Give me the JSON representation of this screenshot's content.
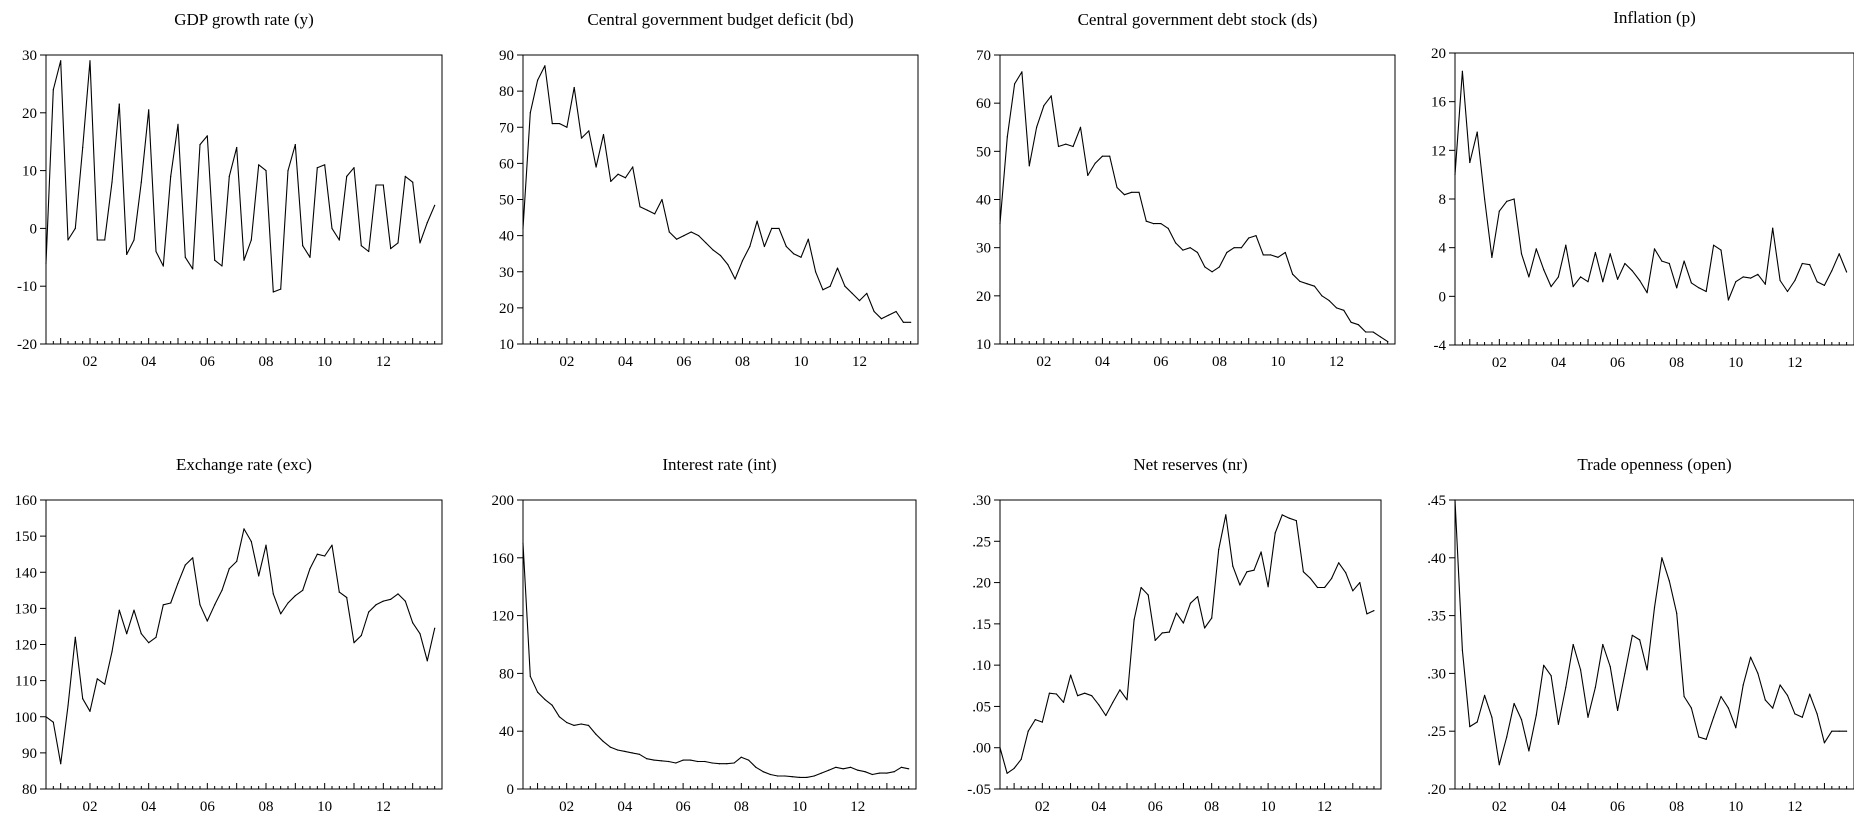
{
  "chart_data": [
    {
      "type": "line",
      "title": "GDP growth rate (y)",
      "xlabel": "",
      "ylabel": "",
      "x_ticks": [
        "02",
        "04",
        "06",
        "08",
        "10",
        "12"
      ],
      "y_ticks": [
        -20,
        -10,
        0,
        10,
        20,
        30
      ],
      "ylim": [
        -20,
        30
      ],
      "x_start": 2000.5,
      "x_step": 0.25,
      "y_format": "int",
      "values": [
        -6,
        24,
        29,
        -2,
        0,
        14,
        29,
        -2,
        -2,
        8,
        21.5,
        -4.5,
        -2,
        8,
        20.5,
        -4,
        -6.5,
        9,
        18,
        -5,
        -7,
        14.5,
        16,
        -5.5,
        -6.5,
        9,
        14,
        -5.5,
        -2,
        11,
        10,
        -11,
        -10.5,
        10,
        14.5,
        -3,
        -5,
        10.5,
        11,
        0,
        -2,
        9,
        10.5,
        -3,
        -4,
        7.5,
        7.5,
        -3.5,
        -2.5,
        9,
        8,
        -2.5,
        1,
        4
      ]
    },
    {
      "type": "line",
      "title": "Central government budget deficit (bd)",
      "xlabel": "",
      "ylabel": "",
      "x_ticks": [
        "02",
        "04",
        "06",
        "08",
        "10",
        "12"
      ],
      "y_ticks": [
        10,
        20,
        30,
        40,
        50,
        60,
        70,
        80,
        90
      ],
      "ylim": [
        10,
        90
      ],
      "x_start": 2000.5,
      "x_step": 0.25,
      "y_format": "int",
      "values": [
        42,
        74,
        83,
        87,
        71,
        71,
        70,
        81,
        67,
        69,
        59,
        68,
        55,
        57,
        56,
        59,
        48,
        47,
        46,
        50,
        41,
        39,
        40,
        41,
        40,
        38,
        36,
        34.5,
        32,
        28,
        33,
        37,
        44,
        37,
        42,
        42,
        37,
        35,
        34,
        39,
        30,
        25,
        26,
        31,
        26,
        24,
        22,
        24,
        19,
        17,
        18,
        19,
        16,
        16
      ]
    },
    {
      "type": "line",
      "title": "Central government debt stock (ds)",
      "xlabel": "",
      "ylabel": "",
      "x_ticks": [
        "02",
        "04",
        "06",
        "08",
        "10",
        "12"
      ],
      "y_ticks": [
        10,
        20,
        30,
        40,
        50,
        60,
        70
      ],
      "ylim": [
        10,
        70
      ],
      "x_start": 2000.5,
      "x_step": 0.25,
      "y_format": "int",
      "values": [
        35,
        53,
        64,
        66.5,
        47,
        55,
        59.5,
        61.5,
        51,
        51.5,
        51,
        55,
        45,
        47.5,
        49,
        49,
        42.5,
        41,
        41.5,
        41.5,
        35.5,
        35,
        35,
        34,
        31,
        29.5,
        30,
        29,
        26,
        25,
        26,
        29,
        30,
        30,
        32,
        32.5,
        28.5,
        28.5,
        28,
        29,
        24.5,
        23,
        22.5,
        22,
        20,
        19,
        17.5,
        17,
        14.5,
        14,
        12.5,
        12.5,
        11.5,
        10.5
      ]
    },
    {
      "type": "line",
      "title": "Inflation (p)",
      "xlabel": "",
      "ylabel": "",
      "x_ticks": [
        "02",
        "04",
        "06",
        "08",
        "10",
        "12"
      ],
      "y_ticks": [
        -4,
        0,
        4,
        8,
        12,
        16,
        20
      ],
      "ylim": [
        -4,
        20
      ],
      "x_start": 2000.5,
      "x_step": 0.25,
      "y_format": "int",
      "values": [
        10,
        18.5,
        11,
        13.5,
        8,
        3.2,
        7,
        7.8,
        8,
        3.5,
        1.6,
        3.9,
        2.2,
        0.8,
        1.6,
        4.2,
        0.8,
        1.6,
        1.2,
        3.6,
        1.2,
        3.5,
        1.4,
        2.7,
        2.1,
        1.3,
        0.3,
        3.9,
        2.9,
        2.7,
        0.7,
        2.9,
        1.1,
        0.7,
        0.4,
        4.2,
        3.8,
        -0.3,
        1.2,
        1.6,
        1.5,
        1.8,
        1.0,
        5.6,
        1.3,
        0.4,
        1.3,
        2.7,
        2.6,
        1.2,
        0.9,
        2.1,
        3.5,
        2
      ]
    },
    {
      "type": "line",
      "title": "Exchange rate (exc)",
      "xlabel": "",
      "ylabel": "",
      "x_ticks": [
        "02",
        "04",
        "06",
        "08",
        "10",
        "12"
      ],
      "y_ticks": [
        80,
        90,
        100,
        110,
        120,
        130,
        140,
        150,
        160
      ],
      "ylim": [
        80,
        160
      ],
      "x_start": 2000.5,
      "x_step": 0.25,
      "y_format": "int",
      "values": [
        100,
        98.5,
        87,
        103,
        122,
        105,
        101.5,
        110.5,
        109,
        118,
        129.5,
        123,
        129.5,
        123,
        120.5,
        122,
        131,
        131.5,
        137,
        142,
        144,
        131,
        126.5,
        131,
        135,
        141,
        143,
        152,
        148.5,
        139,
        147.5,
        134,
        128.5,
        131.5,
        133.5,
        135,
        141,
        145,
        144.5,
        147.5,
        134.5,
        133,
        120.5,
        122.5,
        129,
        131,
        132,
        132.5,
        134,
        132,
        126,
        123,
        115.5,
        124.5
      ]
    },
    {
      "type": "line",
      "title": "Interest rate (int)",
      "xlabel": "",
      "ylabel": "",
      "x_ticks": [
        "02",
        "04",
        "06",
        "08",
        "10",
        "12"
      ],
      "y_ticks": [
        0,
        40,
        80,
        120,
        160,
        200
      ],
      "ylim": [
        0,
        200
      ],
      "x_start": 2000.5,
      "x_step": 0.25,
      "y_format": "int",
      "values": [
        170,
        78,
        67,
        62,
        58,
        50,
        46,
        44,
        45,
        44,
        38,
        33,
        29,
        27,
        26,
        25,
        24,
        21,
        20,
        19.5,
        19,
        18,
        20,
        20,
        19,
        19,
        18,
        17.5,
        17.5,
        18,
        22,
        20,
        15,
        12,
        10,
        9,
        9,
        8.5,
        8,
        8,
        9,
        11,
        13,
        15,
        14,
        15,
        13,
        12,
        10,
        11,
        11,
        12,
        15,
        14
      ]
    },
    {
      "type": "line",
      "title": "Net reserves (nr)",
      "xlabel": "",
      "ylabel": "",
      "x_ticks": [
        "02",
        "04",
        "06",
        "08",
        "10",
        "12"
      ],
      "y_ticks": [
        -0.05,
        0.0,
        0.05,
        0.1,
        0.15,
        0.2,
        0.25,
        0.3
      ],
      "y_tick_labels": [
        "-.05",
        ".00",
        ".05",
        ".10",
        ".15",
        ".20",
        ".25",
        ".30"
      ],
      "ylim": [
        -0.05,
        0.3
      ],
      "x_start": 2000.5,
      "x_step": 0.25,
      "y_format": "dec2",
      "values": [
        0.0,
        -0.031,
        -0.025,
        -0.014,
        0.02,
        0.034,
        0.031,
        0.066,
        0.065,
        0.055,
        0.088,
        0.063,
        0.066,
        0.063,
        0.052,
        0.039,
        0.055,
        0.07,
        0.058,
        0.155,
        0.194,
        0.185,
        0.13,
        0.139,
        0.14,
        0.163,
        0.151,
        0.175,
        0.183,
        0.145,
        0.157,
        0.24,
        0.282,
        0.22,
        0.197,
        0.213,
        0.215,
        0.237,
        0.195,
        0.26,
        0.282,
        0.278,
        0.275,
        0.213,
        0.205,
        0.194,
        0.194,
        0.205,
        0.224,
        0.212,
        0.19,
        0.2,
        0.162,
        0.166
      ]
    },
    {
      "type": "line",
      "title": "Trade openness (open)",
      "xlabel": "",
      "ylabel": "",
      "x_ticks": [
        "02",
        "04",
        "06",
        "08",
        "10",
        "12"
      ],
      "y_ticks": [
        0.2,
        0.25,
        0.3,
        0.35,
        0.4,
        0.45
      ],
      "y_tick_labels": [
        ".20",
        ".25",
        ".30",
        ".35",
        ".40",
        ".45"
      ],
      "ylim": [
        0.2,
        0.45
      ],
      "x_start": 2000.5,
      "x_step": 0.25,
      "y_format": "dec2",
      "values": [
        0.45,
        0.32,
        0.254,
        0.258,
        0.281,
        0.262,
        0.221,
        0.245,
        0.274,
        0.26,
        0.233,
        0.264,
        0.307,
        0.298,
        0.256,
        0.288,
        0.325,
        0.303,
        0.262,
        0.288,
        0.325,
        0.306,
        0.268,
        0.3,
        0.333,
        0.329,
        0.303,
        0.357,
        0.4,
        0.38,
        0.352,
        0.28,
        0.27,
        0.245,
        0.243,
        0.262,
        0.28,
        0.27,
        0.253,
        0.29,
        0.314,
        0.3,
        0.277,
        0.27,
        0.29,
        0.281,
        0.265,
        0.262,
        0.282,
        0.265,
        0.24,
        0.25,
        0.25,
        0.25
      ]
    }
  ]
}
